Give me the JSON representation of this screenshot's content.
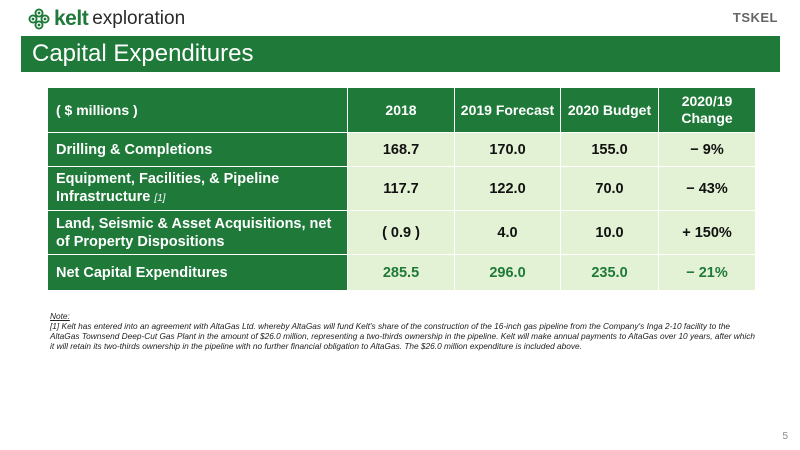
{
  "brand": {
    "name": "kelt",
    "sub": "exploration",
    "partner": "TSKEL"
  },
  "title": "Capital Expenditures",
  "table": {
    "headers": [
      "( $ millions )",
      "2018",
      "2019 Forecast",
      "2020 Budget",
      "2020/19 Change"
    ],
    "rows": [
      {
        "label": "Drilling & Completions",
        "footnote": "",
        "values": [
          "168.7",
          "170.0",
          "155.0",
          "− 9%"
        ]
      },
      {
        "label": "Equipment, Facilities, & Pipeline Infrastructure",
        "footnote": "[1]",
        "values": [
          "117.7",
          "122.0",
          "70.0",
          "− 43%"
        ]
      },
      {
        "label": "Land, Seismic & Asset Acquisitions, net of Property Dispositions",
        "footnote": "",
        "values": [
          "( 0.9 )",
          "4.0",
          "10.0",
          "+ 150%"
        ]
      },
      {
        "label": "Net Capital Expenditures",
        "footnote": "",
        "values": [
          "285.5",
          "296.0",
          "235.0",
          "− 21%"
        ]
      }
    ]
  },
  "note": {
    "label": "Note:",
    "text": "[1] Kelt has entered into an agreement with AltaGas Ltd. whereby AltaGas will fund Kelt's share of the construction of the 16-inch gas pipeline from the Company's Inga 2-10 facility to the AltaGas Townsend Deep-Cut Gas Plant in the amount of $26.0 million, representing a two-thirds ownership in the pipeline. Kelt will make annual payments to AltaGas over 10 years, after which it will retain its two-thirds ownership in the pipeline with no further financial obligation to AltaGas. The $26.0 million expenditure is included above."
  },
  "page_number": "5",
  "colors": {
    "brand_green": "#1f7a3a",
    "cell_fill": "#e3f2d4"
  }
}
